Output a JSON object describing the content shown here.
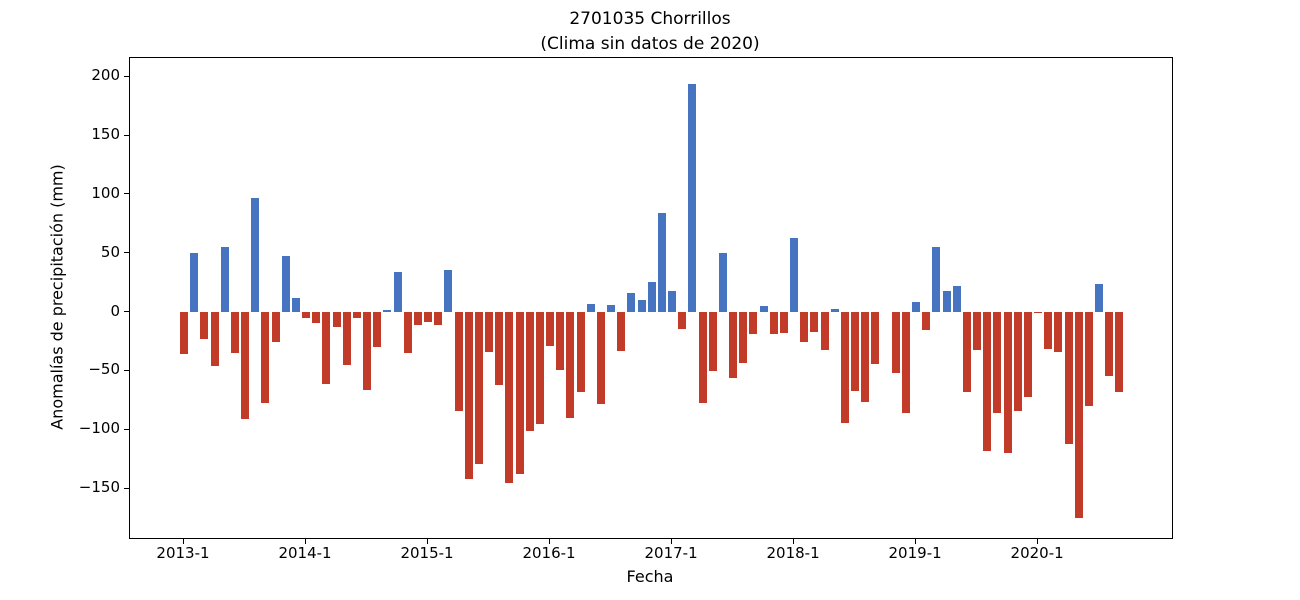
{
  "title_line1": "2701035 Chorrillos",
  "title_line2": "(Clima sin datos de 2020)",
  "x_axis_label": "Fecha",
  "y_axis_label": "Anomalías de precipitación (mm)",
  "colors": {
    "positive_bar": "#4674c1",
    "negative_bar": "#c23b28",
    "axis": "#000000",
    "background": "#ffffff"
  },
  "chart_data": {
    "type": "bar",
    "title": "2701035 Chorrillos (Clima sin datos de 2020)",
    "xlabel": "Fecha",
    "ylabel": "Anomalías de precipitación (mm)",
    "grid": false,
    "legend": "none",
    "ylim": [
      -192,
      216
    ],
    "y_ticks": [
      {
        "value": 200,
        "label": "200"
      },
      {
        "value": 150,
        "label": "150"
      },
      {
        "value": 100,
        "label": "100"
      },
      {
        "value": 50,
        "label": "50"
      },
      {
        "value": 0,
        "label": "0"
      },
      {
        "value": -50,
        "label": "−50"
      },
      {
        "value": -100,
        "label": "−100"
      },
      {
        "value": -150,
        "label": "−150"
      }
    ],
    "x_ticks": [
      {
        "index": 0,
        "label": "2013-1"
      },
      {
        "index": 12,
        "label": "2014-1"
      },
      {
        "index": 24,
        "label": "2015-1"
      },
      {
        "index": 36,
        "label": "2016-1"
      },
      {
        "index": 48,
        "label": "2017-1"
      },
      {
        "index": 60,
        "label": "2018-1"
      },
      {
        "index": 72,
        "label": "2019-1"
      },
      {
        "index": 84,
        "label": "2020-1"
      }
    ],
    "categories": [
      "2013-01",
      "2013-02",
      "2013-03",
      "2013-04",
      "2013-05",
      "2013-06",
      "2013-07",
      "2013-08",
      "2013-09",
      "2013-10",
      "2013-11",
      "2013-12",
      "2014-01",
      "2014-02",
      "2014-03",
      "2014-04",
      "2014-05",
      "2014-06",
      "2014-07",
      "2014-08",
      "2014-09",
      "2014-10",
      "2014-11",
      "2014-12",
      "2015-01",
      "2015-02",
      "2015-03",
      "2015-04",
      "2015-05",
      "2015-06",
      "2015-07",
      "2015-08",
      "2015-09",
      "2015-10",
      "2015-11",
      "2015-12",
      "2016-01",
      "2016-02",
      "2016-03",
      "2016-04",
      "2016-05",
      "2016-06",
      "2016-07",
      "2016-08",
      "2016-09",
      "2016-10",
      "2016-11",
      "2016-12",
      "2017-01",
      "2017-02",
      "2017-03",
      "2017-04",
      "2017-05",
      "2017-06",
      "2017-07",
      "2017-08",
      "2017-09",
      "2017-10",
      "2017-11",
      "2017-12",
      "2018-01",
      "2018-02",
      "2018-03",
      "2018-04",
      "2018-05",
      "2018-06",
      "2018-07",
      "2018-08",
      "2018-09",
      "2018-10",
      "2018-11",
      "2018-12",
      "2019-01",
      "2019-02",
      "2019-03",
      "2019-04",
      "2019-05",
      "2019-06",
      "2019-07",
      "2019-08",
      "2019-09",
      "2019-10",
      "2019-11",
      "2019-12",
      "2020-01",
      "2020-02",
      "2020-03",
      "2020-04",
      "2020-05",
      "2020-06",
      "2020-07",
      "2020-08",
      "2020-09"
    ],
    "values": [
      -36,
      50,
      -23,
      -46,
      55,
      -35,
      -91,
      97,
      -77,
      -25,
      48,
      12,
      -5,
      -9,
      -61,
      -13,
      -45,
      -5,
      -66,
      -30,
      2,
      34,
      -35,
      -11,
      -8,
      -11,
      36,
      -84,
      -142,
      -129,
      -34,
      -62,
      -145,
      -138,
      -101,
      -95,
      -29,
      -49,
      -90,
      -68,
      7,
      -78,
      6,
      -33,
      16,
      10,
      26,
      84,
      18,
      -14,
      194,
      -77,
      -50,
      50,
      -56,
      -43,
      -19,
      5,
      -19,
      -18,
      63,
      -25,
      -17,
      -32,
      3,
      -94,
      -67,
      -76,
      -44,
      0,
      -52,
      -86,
      9,
      -15,
      55,
      18,
      22,
      -68,
      -32,
      -118,
      -86,
      -120,
      -84,
      -72,
      -1,
      -31,
      -34,
      -112,
      -175,
      -80,
      24,
      -54,
      -68
    ]
  }
}
